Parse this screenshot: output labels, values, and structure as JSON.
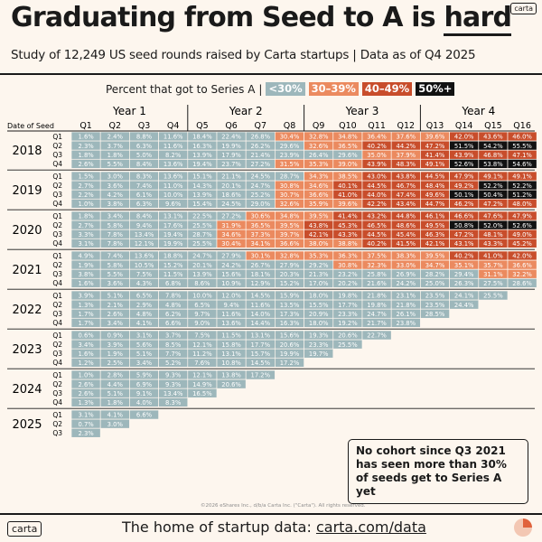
{
  "header": {
    "title_main": "Graduating from Seed to A is ",
    "title_emphasis": "hard",
    "subtitle": "Study of 12,249 US seed rounds raised by Carta startups | Data as of Q4 2025",
    "brand": "carta"
  },
  "legend": {
    "label": "Percent that got to Series A",
    "items": [
      {
        "label": "<30%",
        "color": "#9db7bb",
        "text_color": "#ffffff"
      },
      {
        "label": "30–39%",
        "color": "#eb8a5f",
        "text_color": "#ffffff"
      },
      {
        "label": "40–49%",
        "color": "#c84d2b",
        "text_color": "#ffffff"
      },
      {
        "label": "50%+",
        "color": "#111111",
        "text_color": "#ffffff"
      }
    ]
  },
  "colors": {
    "background": "#fdf6ee",
    "low": "#9db7bb",
    "mid": "#eb8a5f",
    "high": "#c84d2b",
    "top": "#111111"
  },
  "chart_data": {
    "type": "heatmap",
    "row_axis_label": "Date of Seed",
    "column_groups": [
      "Year 1",
      "Year 2",
      "Year 3",
      "Year 4"
    ],
    "columns": [
      "Q1",
      "Q2",
      "Q3",
      "Q4",
      "Q5",
      "Q6",
      "Q7",
      "Q8",
      "Q9",
      "Q10",
      "Q11",
      "Q12",
      "Q13",
      "Q14",
      "Q15",
      "Q16"
    ],
    "bins": [
      {
        "label": "<30%",
        "min": 0,
        "max": 30
      },
      {
        "label": "30–39%",
        "min": 30,
        "max": 40
      },
      {
        "label": "40–49%",
        "min": 40,
        "max": 50
      },
      {
        "label": "50%+",
        "min": 50,
        "max": 100
      }
    ],
    "years": [
      {
        "year": "2018",
        "rows": [
          {
            "q": "Q1",
            "values": [
              1.6,
              2.4,
              8.8,
              11.6,
              18.4,
              22.4,
              26.8,
              30.4,
              32.8,
              34.8,
              36.4,
              37.6,
              39.6,
              42.0,
              43.6,
              46.0
            ]
          },
          {
            "q": "Q2",
            "values": [
              2.3,
              3.7,
              6.3,
              11.6,
              16.3,
              19.9,
              26.2,
              29.6,
              32.6,
              36.5,
              40.2,
              44.2,
              47.2,
              51.5,
              54.2,
              55.5
            ]
          },
          {
            "q": "Q3",
            "values": [
              1.8,
              1.8,
              5.0,
              8.2,
              13.9,
              17.9,
              21.4,
              23.9,
              26.4,
              29.6,
              35.0,
              37.9,
              41.4,
              43.9,
              46.8,
              47.1
            ]
          },
          {
            "q": "Q4",
            "values": [
              2.6,
              5.5,
              8.4,
              13.6,
              19.4,
              23.7,
              27.2,
              31.5,
              35.3,
              39.0,
              43.9,
              48.3,
              49.1,
              52.6,
              53.8,
              54.6
            ]
          }
        ]
      },
      {
        "year": "2019",
        "rows": [
          {
            "q": "Q1",
            "values": [
              1.5,
              3.0,
              8.3,
              13.6,
              15.1,
              21.1,
              24.5,
              28.7,
              34.3,
              38.5,
              43.0,
              43.8,
              44.5,
              47.9,
              49.1,
              49.1
            ]
          },
          {
            "q": "Q2",
            "values": [
              2.7,
              3.6,
              7.4,
              11.0,
              14.3,
              20.1,
              24.7,
              30.8,
              34.6,
              40.1,
              44.5,
              46.7,
              48.4,
              49.2,
              52.2,
              52.2
            ]
          },
          {
            "q": "Q3",
            "values": [
              2.2,
              4.2,
              6.1,
              10.0,
              13.9,
              18.6,
              25.2,
              30.7,
              36.6,
              41.0,
              44.0,
              47.4,
              49.6,
              50.1,
              50.4,
              51.2
            ]
          },
          {
            "q": "Q4",
            "values": [
              1.0,
              3.8,
              6.3,
              9.6,
              15.4,
              24.5,
              29.0,
              32.6,
              35.9,
              39.6,
              42.2,
              43.4,
              44.7,
              46.2,
              47.2,
              48.0
            ]
          }
        ]
      },
      {
        "year": "2020",
        "rows": [
          {
            "q": "Q1",
            "values": [
              1.8,
              3.4,
              8.4,
              13.1,
              22.5,
              27.2,
              30.6,
              34.8,
              39.5,
              41.4,
              43.2,
              44.8,
              46.1,
              46.6,
              47.6,
              47.9
            ]
          },
          {
            "q": "Q2",
            "values": [
              2.7,
              5.8,
              9.4,
              17.6,
              25.5,
              31.9,
              36.5,
              39.5,
              43.8,
              45.3,
              46.5,
              48.6,
              49.5,
              50.8,
              52.0,
              52.6
            ]
          },
          {
            "q": "Q3",
            "values": [
              3.3,
              7.8,
              13.4,
              19.4,
              28.7,
              34.6,
              37.3,
              39.7,
              42.1,
              43.3,
              44.5,
              45.4,
              46.3,
              47.2,
              48.1,
              49.0
            ]
          },
          {
            "q": "Q4",
            "values": [
              3.1,
              7.8,
              12.1,
              19.9,
              25.5,
              30.4,
              34.1,
              36.6,
              38.0,
              38.8,
              40.2,
              41.5,
              42.1,
              43.1,
              43.3,
              45.2
            ]
          }
        ]
      },
      {
        "year": "2021",
        "rows": [
          {
            "q": "Q1",
            "values": [
              4.9,
              7.4,
              13.6,
              18.8,
              24.7,
              27.9,
              30.1,
              32.8,
              35.3,
              36.3,
              37.5,
              38.3,
              39.5,
              40.2,
              41.0,
              42.0
            ]
          },
          {
            "q": "Q2",
            "values": [
              1.9,
              5.8,
              10.5,
              15.2,
              20.1,
              24.2,
              26.7,
              27.9,
              29.2,
              30.8,
              32.3,
              33.0,
              34.7,
              35.1,
              35.7,
              36.6
            ]
          },
          {
            "q": "Q3",
            "values": [
              3.8,
              5.5,
              7.5,
              11.5,
              13.9,
              15.6,
              18.1,
              20.3,
              21.3,
              23.2,
              25.8,
              26.9,
              28.2,
              29.4,
              31.1,
              32.2
            ]
          },
          {
            "q": "Q4",
            "values": [
              1.6,
              3.6,
              4.3,
              6.8,
              8.6,
              10.9,
              12.9,
              15.2,
              17.0,
              20.2,
              21.6,
              24.2,
              25.0,
              26.3,
              27.5,
              28.6
            ]
          }
        ]
      },
      {
        "year": "2022",
        "rows": [
          {
            "q": "Q1",
            "values": [
              3.9,
              5.1,
              6.5,
              7.8,
              10.0,
              12.0,
              14.5,
              15.9,
              18.0,
              19.8,
              21.8,
              23.1,
              23.5,
              24.1,
              25.5
            ]
          },
          {
            "q": "Q2",
            "values": [
              1.3,
              2.1,
              2.9,
              4.8,
              6.5,
              9.4,
              11.6,
              13.5,
              15.5,
              17.7,
              19.8,
              21.8,
              23.5,
              24.4
            ]
          },
          {
            "q": "Q3",
            "values": [
              1.7,
              2.6,
              4.8,
              6.2,
              9.7,
              11.6,
              14.0,
              17.3,
              20.9,
              23.3,
              24.7,
              26.1,
              28.5
            ]
          },
          {
            "q": "Q4",
            "values": [
              1.7,
              3.4,
              4.1,
              6.6,
              9.0,
              13.6,
              14.4,
              16.3,
              18.0,
              19.2,
              21.7,
              23.8
            ]
          }
        ]
      },
      {
        "year": "2023",
        "rows": [
          {
            "q": "Q1",
            "values": [
              0.6,
              0.9,
              3.1,
              3.7,
              7.5,
              11.5,
              13.1,
              15.6,
              19.3,
              20.6,
              22.7
            ]
          },
          {
            "q": "Q2",
            "values": [
              3.4,
              3.9,
              5.6,
              8.5,
              12.1,
              15.8,
              17.7,
              20.6,
              23.3,
              25.5
            ]
          },
          {
            "q": "Q3",
            "values": [
              1.6,
              1.9,
              5.1,
              7.7,
              11.2,
              13.1,
              15.7,
              19.9,
              19.7
            ]
          },
          {
            "q": "Q4",
            "values": [
              1.2,
              2.5,
              3.4,
              5.2,
              7.6,
              10.8,
              14.5,
              17.2
            ]
          }
        ]
      },
      {
        "year": "2024",
        "rows": [
          {
            "q": "Q1",
            "values": [
              1.0,
              2.8,
              5.9,
              9.3,
              12.1,
              13.8,
              17.2
            ]
          },
          {
            "q": "Q2",
            "values": [
              2.6,
              4.4,
              6.9,
              9.3,
              14.9,
              20.6
            ]
          },
          {
            "q": "Q3",
            "values": [
              2.6,
              5.1,
              9.1,
              13.4,
              16.5
            ]
          },
          {
            "q": "Q4",
            "values": [
              1.3,
              1.8,
              4.0,
              8.3
            ]
          }
        ]
      },
      {
        "year": "2025",
        "rows": [
          {
            "q": "Q1",
            "values": [
              3.1,
              4.1,
              6.6
            ]
          },
          {
            "q": "Q2",
            "values": [
              0.7,
              3.0
            ]
          },
          {
            "q": "Q3",
            "values": [
              2.3
            ]
          }
        ]
      }
    ],
    "annotation": "No cohort since Q3 2021 has seen more than 30% of seeds get to Series A yet"
  },
  "footer": {
    "copyright": "©2026 eShares Inc., d/b/a Carta Inc. (\"Carta\"). All rights reserved.",
    "tagline_prefix": "The home of startup data: ",
    "tagline_url": "carta.com/data",
    "brand": "carta"
  }
}
